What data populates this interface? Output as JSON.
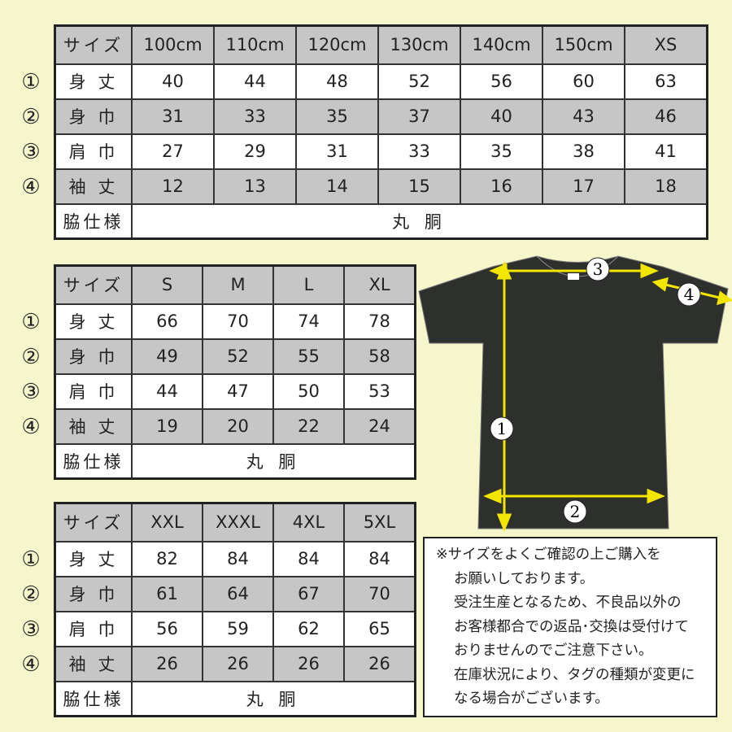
{
  "row_markers": [
    "①",
    "②",
    "③",
    "④"
  ],
  "tables": [
    {
      "header_label": "サイズ",
      "sizes": [
        "100cm",
        "110cm",
        "120cm",
        "130cm",
        "140cm",
        "150cm",
        "XS"
      ],
      "rows": [
        {
          "marker": "①",
          "label": "身 丈",
          "values": [
            "40",
            "44",
            "48",
            "52",
            "56",
            "60",
            "63"
          ]
        },
        {
          "marker": "②",
          "label": "身 巾",
          "values": [
            "31",
            "33",
            "35",
            "37",
            "40",
            "43",
            "46"
          ]
        },
        {
          "marker": "③",
          "label": "肩 巾",
          "values": [
            "27",
            "29",
            "31",
            "33",
            "35",
            "38",
            "41"
          ]
        },
        {
          "marker": "④",
          "label": "袖 丈",
          "values": [
            "12",
            "13",
            "14",
            "15",
            "16",
            "17",
            "18"
          ]
        }
      ],
      "side_label": "脇仕様",
      "side_value": "丸 胴"
    },
    {
      "header_label": "サイズ",
      "sizes": [
        "S",
        "M",
        "L",
        "XL"
      ],
      "rows": [
        {
          "marker": "①",
          "label": "身 丈",
          "values": [
            "66",
            "70",
            "74",
            "78"
          ]
        },
        {
          "marker": "②",
          "label": "身 巾",
          "values": [
            "49",
            "52",
            "55",
            "58"
          ]
        },
        {
          "marker": "③",
          "label": "肩 巾",
          "values": [
            "44",
            "47",
            "50",
            "53"
          ]
        },
        {
          "marker": "④",
          "label": "袖 丈",
          "values": [
            "19",
            "20",
            "22",
            "24"
          ]
        }
      ],
      "side_label": "脇仕様",
      "side_value": "丸 胴"
    },
    {
      "header_label": "サイズ",
      "sizes": [
        "XXL",
        "XXXL",
        "4XL",
        "5XL"
      ],
      "rows": [
        {
          "marker": "①",
          "label": "身 丈",
          "values": [
            "82",
            "84",
            "84",
            "84"
          ]
        },
        {
          "marker": "②",
          "label": "身 巾",
          "values": [
            "61",
            "64",
            "67",
            "70"
          ]
        },
        {
          "marker": "③",
          "label": "肩 巾",
          "values": [
            "56",
            "59",
            "62",
            "65"
          ]
        },
        {
          "marker": "④",
          "label": "袖 丈",
          "values": [
            "26",
            "26",
            "26",
            "26"
          ]
        }
      ],
      "side_label": "脇仕様",
      "side_value": "丸 胴"
    }
  ],
  "diagram": {
    "markers": {
      "length": "1",
      "width": "2",
      "shoulder": "3",
      "sleeve": "4"
    },
    "shirt_color": "#2e302e",
    "arrow_color": "#f2e600"
  },
  "note": {
    "lines": [
      "※サイズをよくご確認の上ご購入を",
      "お願いしております。",
      "受注生産となるため、不良品以外の",
      "お客様都合での返品･交換は受付けて",
      "おりませんのでご注意下さい。",
      "在庫状況により、タグの種類が変更に",
      "なる場合がございます。"
    ]
  },
  "colors": {
    "background": "#f6f6cc",
    "gray_row": "#c6c6c6"
  }
}
